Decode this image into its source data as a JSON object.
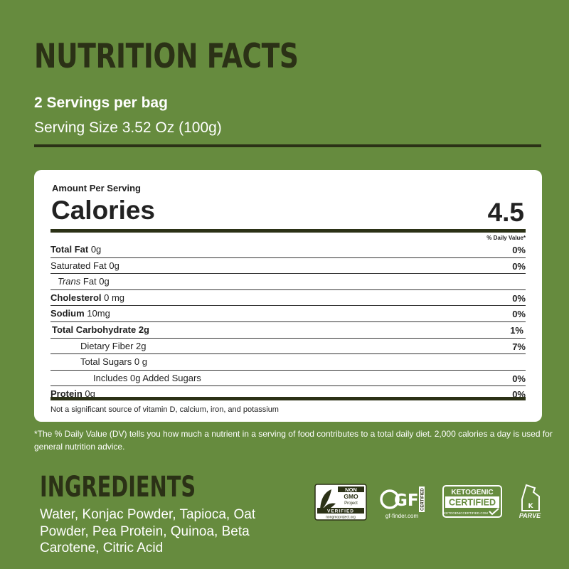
{
  "header": {
    "title": "NUTRITION FACTS",
    "servings": "2 Servings per bag",
    "serving_size": "Serving Size 3.52 Oz (100g)"
  },
  "panel": {
    "amount_per_serving": "Amount Per Serving",
    "calories_label": "Calories",
    "calories_value": "4.5",
    "daily_value_header": "% Daily Value*",
    "rows": [
      {
        "name": "Total Fat",
        "amount": " 0g",
        "dv": "0%"
      },
      {
        "name": "Saturated Fat 0g",
        "dv": "0%"
      },
      {
        "name": "Trans",
        "amount": " Fat 0g",
        "dv": ""
      },
      {
        "name": "Cholesterol",
        "amount": " 0 mg",
        "dv": "0%"
      },
      {
        "name": "Sodium",
        "amount": " 10mg",
        "dv": "0%"
      },
      {
        "name": "Total Carbohydrate 2g",
        "dv": "1%"
      },
      {
        "name": "Dietary Fiber 2g",
        "dv": "7%"
      },
      {
        "name": "Total Sugars 0 g",
        "dv": ""
      },
      {
        "name": "Includes 0g Added Sugars",
        "dv": "0%"
      },
      {
        "name": "Protein",
        "amount": " 0g",
        "dv": "0%"
      }
    ],
    "footnote": "Not a significant source of vitamin D, calcium, iron, and potassium"
  },
  "dv_note": "*The % Daily Value (DV) tells you how much a nutrient in a serving of food contributes to a total daily diet. 2,000 calories a day is used for general nutrition advice.",
  "ingredients": {
    "title": "INGREDIENTS",
    "text": "Water, Konjac Powder, Tapioca, Oat Powder, Pea Protein, Quinoa, Beta Carotene, Citric Acid"
  },
  "badges": {
    "non_gmo_top": "NON",
    "non_gmo_mid": "GMO",
    "non_gmo_project": "Project",
    "non_gmo_verified": "VERIFIED",
    "non_gmo_url": "nongmoproject.org",
    "gf_mark": "GF",
    "gf_certified": "CERTIFIED",
    "gf_url": "gf-finder.com",
    "keto_line1": "KETOGENIC",
    "keto_line2": "CERTIFIED",
    "keto_url": "KETOGENICCERTIFIED.COM",
    "parve_letter": "K",
    "parve_label": "PARVE"
  },
  "colors": {
    "background": "#668b3e",
    "dark_olive": "#2b3116",
    "panel": "#ffffff"
  }
}
